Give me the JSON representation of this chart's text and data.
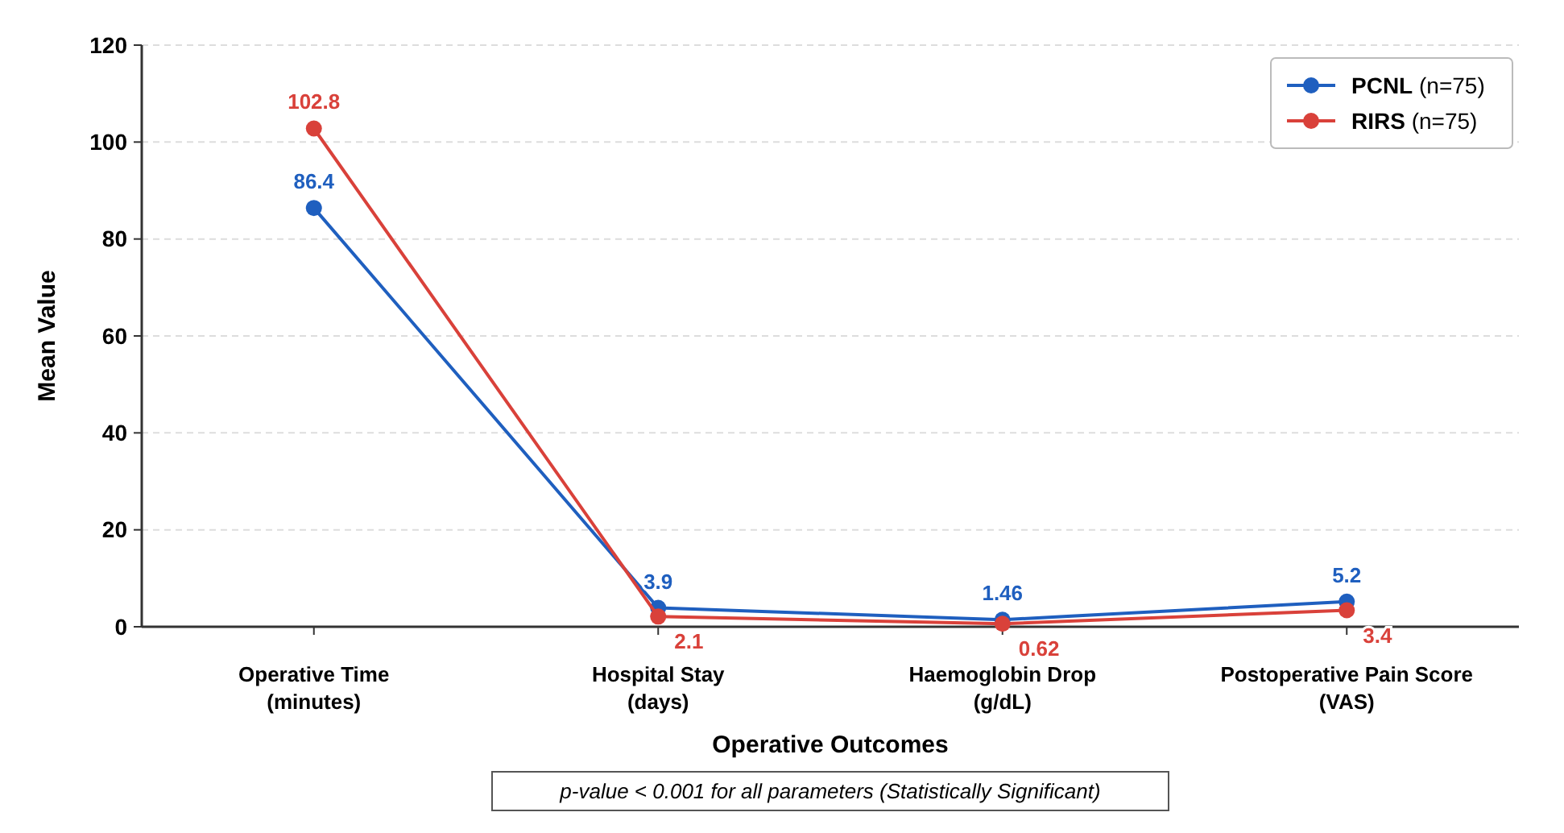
{
  "chart_data": {
    "type": "line",
    "xlabel": "Operative Outcomes",
    "ylabel": "Mean Value",
    "categories": [
      "Operative Time\n(minutes)",
      "Hospital Stay\n(days)",
      "Haemoglobin Drop\n(g/dL)",
      "Postoperative Pain Score\n(VAS)"
    ],
    "series": [
      {
        "name": "PCNL (n=75)",
        "color": "#1f5fbf",
        "values": [
          86.4,
          3.9,
          1.46,
          5.2
        ]
      },
      {
        "name": "RIRS (n=75)",
        "color": "#d9413a",
        "values": [
          102.8,
          2.1,
          0.62,
          3.4
        ]
      }
    ],
    "ylim": [
      0,
      120
    ],
    "yticks": [
      0,
      20,
      40,
      60,
      80,
      100,
      120
    ],
    "grid": "y",
    "legend": "top right",
    "marker": "circle",
    "line_style": "solid",
    "data_labels": true,
    "annotations": [
      "p-value < 0.001 for all parameters (Statistically Significant)"
    ]
  }
}
